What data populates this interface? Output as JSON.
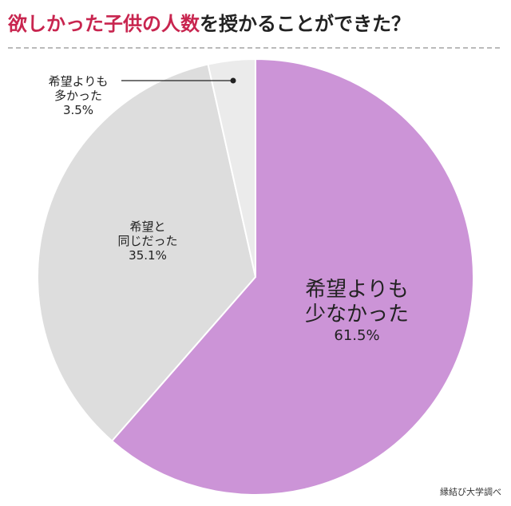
{
  "chart_data": {
    "type": "pie",
    "title_parts": [
      {
        "text": "欲しかった子供の人数",
        "color": "#c8254f"
      },
      {
        "text": "を授かることができた？",
        "color": "#222222"
      }
    ],
    "categories": [
      "希望よりも\n少なかった",
      "希望と\n同じだった",
      "希望よりも\n多かった"
    ],
    "values": [
      61.5,
      35.1,
      3.5
    ],
    "value_labels": [
      "61.5%",
      "35.1%",
      "3.5%"
    ],
    "colors": [
      "#cc94d7",
      "#dddddd",
      "#ebebeb"
    ],
    "source": "縁結び大学調べ"
  }
}
